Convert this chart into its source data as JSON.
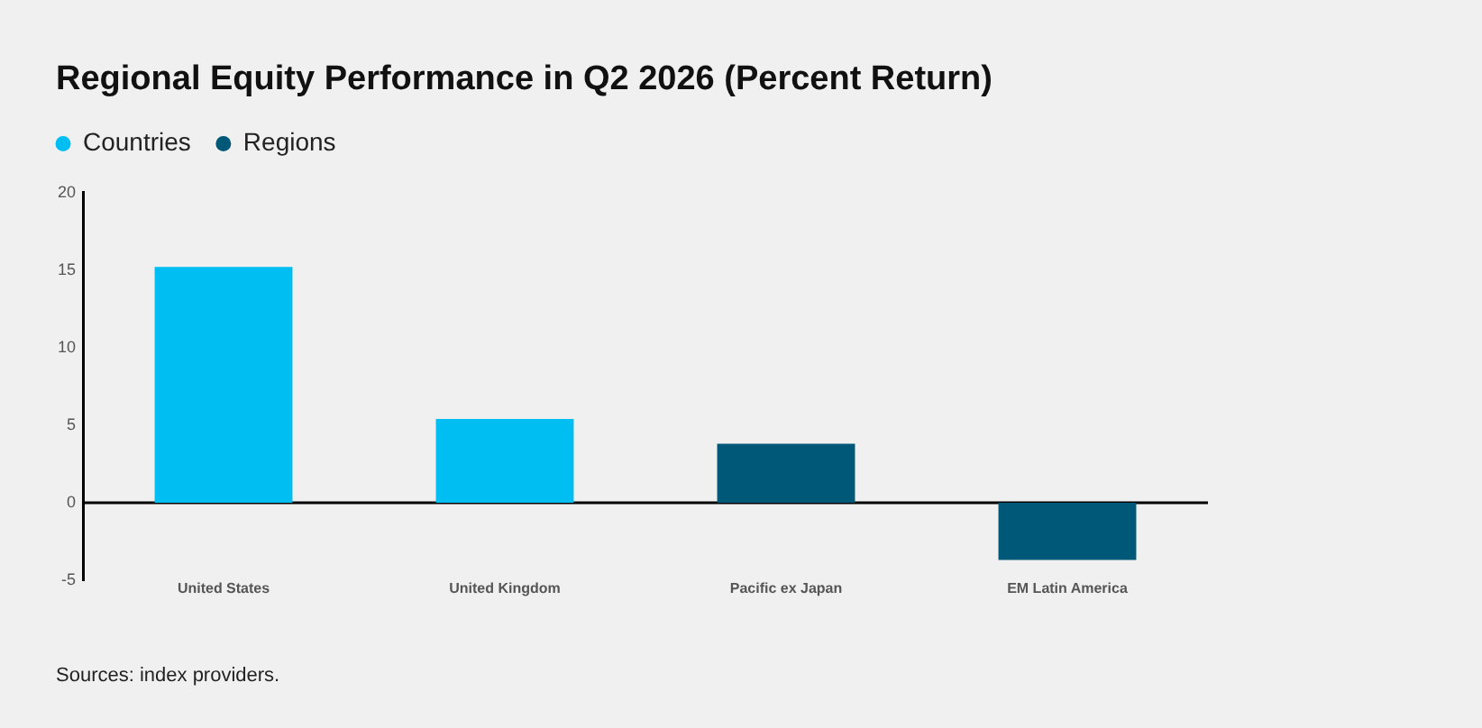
{
  "chart_data": {
    "type": "bar",
    "title": "Regional Equity Performance in Q2 2026 (Percent Return)",
    "categories": [
      "United States",
      "United Kingdom",
      "Pacific ex Japan",
      "EM Latin America"
    ],
    "series": [
      {
        "name": "Countries",
        "color": "#00bef2",
        "values": [
          15.2,
          5.4,
          null,
          null
        ]
      },
      {
        "name": "Regions",
        "color": "#005878",
        "values": [
          null,
          null,
          3.8,
          -3.7
        ]
      }
    ],
    "ylim": [
      -5,
      20
    ],
    "yticks": [
      20,
      15,
      10,
      5,
      0,
      -5
    ],
    "legend": "top left",
    "annotations": [
      "Sources: index providers."
    ]
  }
}
